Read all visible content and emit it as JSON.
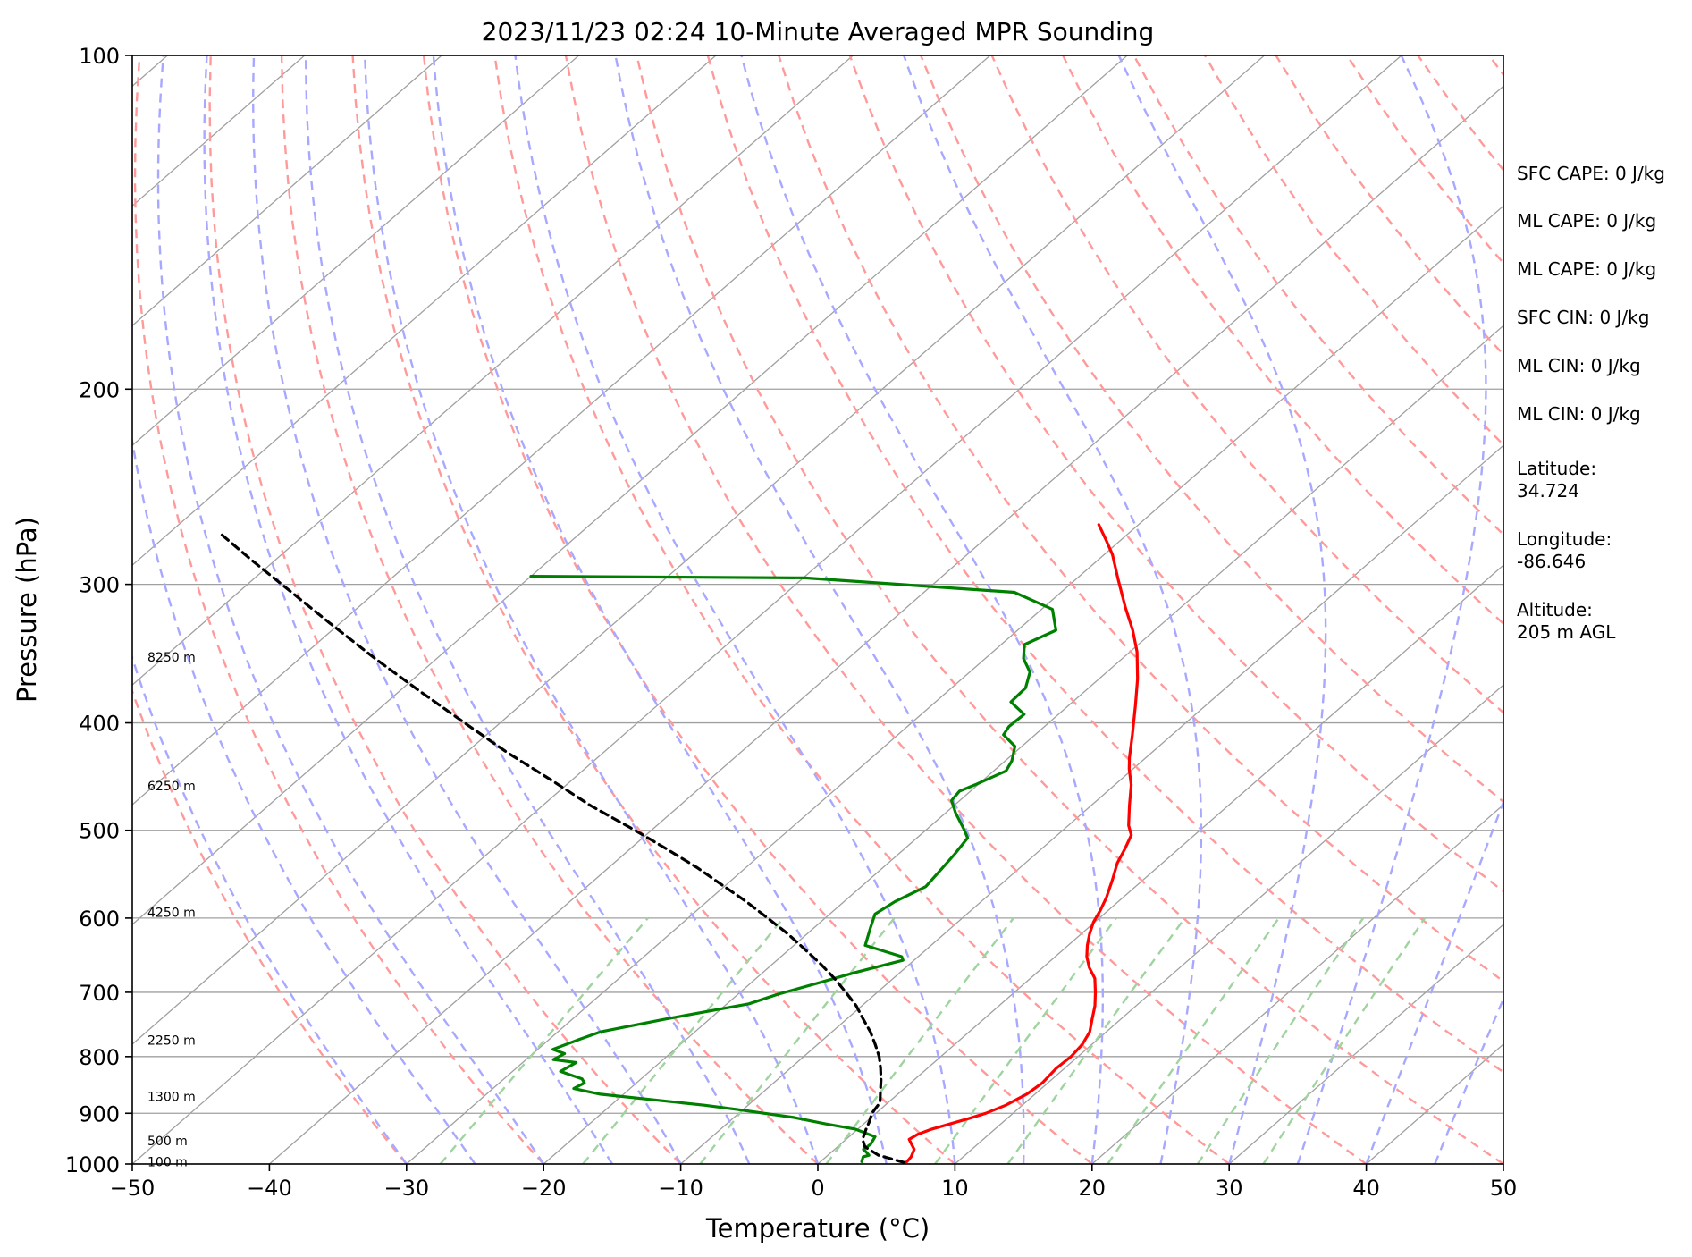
{
  "chart_data": {
    "type": "line",
    "title": "2023/11/23 02:24 10-Minute Averaged MPR Sounding",
    "xlabel": "Temperature (°C)",
    "ylabel": "Pressure (hPa)",
    "xlim": [
      -50,
      50
    ],
    "ylim": [
      1000,
      100
    ],
    "y_scale": "log",
    "skew_t": true,
    "x_ticks": [
      "−50",
      "−40",
      "−30",
      "−20",
      "−10",
      "0",
      "10",
      "20",
      "30",
      "40",
      "50"
    ],
    "y_ticks": [
      "100",
      "200",
      "300",
      "400",
      "500",
      "600",
      "700",
      "800",
      "900",
      "1000"
    ],
    "height_labels": [
      {
        "label": "100 m",
        "p": 995
      },
      {
        "label": "500 m",
        "p": 953
      },
      {
        "label": "1300 m",
        "p": 869
      },
      {
        "label": "2250 m",
        "p": 773
      },
      {
        "label": "4250 m",
        "p": 593
      },
      {
        "label": "6250 m",
        "p": 456
      },
      {
        "label": "8250 m",
        "p": 349
      }
    ],
    "series": [
      {
        "id": "temperature",
        "color": "#ff0000",
        "points": [
          [
            6.3,
            995
          ],
          [
            6.2,
            985
          ],
          [
            5.8,
            970
          ],
          [
            5.2,
            960
          ],
          [
            4.6,
            950
          ],
          [
            4.8,
            940
          ],
          [
            5.4,
            930
          ],
          [
            6.3,
            920
          ],
          [
            7.2,
            910
          ],
          [
            8.0,
            900
          ],
          [
            8.8,
            885
          ],
          [
            9.4,
            865
          ],
          [
            9.6,
            845
          ],
          [
            9.4,
            820
          ],
          [
            9.5,
            800
          ],
          [
            9.3,
            780
          ],
          [
            8.8,
            760
          ],
          [
            7.9,
            740
          ],
          [
            7.0,
            720
          ],
          [
            5.9,
            700
          ],
          [
            4.7,
            680
          ],
          [
            3.4,
            665
          ],
          [
            2.3,
            650
          ],
          [
            1.4,
            635
          ],
          [
            0.6,
            620
          ],
          [
            -0.1,
            605
          ],
          [
            -0.6,
            590
          ],
          [
            -1.2,
            575
          ],
          [
            -2.2,
            555
          ],
          [
            -3.3,
            535
          ],
          [
            -3.9,
            520
          ],
          [
            -4.6,
            505
          ],
          [
            -5.6,
            495
          ],
          [
            -7.2,
            475
          ],
          [
            -8.8,
            455
          ],
          [
            -10.3,
            440
          ],
          [
            -11.2,
            430
          ],
          [
            -12.9,
            410
          ],
          [
            -15.2,
            385
          ],
          [
            -17.2,
            365
          ],
          [
            -19.5,
            345
          ],
          [
            -21.6,
            330
          ],
          [
            -24.0,
            315
          ],
          [
            -26.9,
            297
          ],
          [
            -29.4,
            282
          ],
          [
            -31.0,
            274
          ],
          [
            -32.9,
            265
          ]
        ]
      },
      {
        "id": "dewpoint",
        "color": "#008000",
        "points": [
          [
            3.0,
            995
          ],
          [
            2.7,
            985
          ],
          [
            3.0,
            982
          ],
          [
            2.5,
            975
          ],
          [
            2.1,
            970
          ],
          [
            2.2,
            960
          ],
          [
            2.0,
            950
          ],
          [
            1.9,
            945
          ],
          [
            -0.2,
            930
          ],
          [
            -2.8,
            920
          ],
          [
            -5.6,
            908
          ],
          [
            -10.4,
            893
          ],
          [
            -13.2,
            885
          ],
          [
            -21.7,
            865
          ],
          [
            -24.1,
            855
          ],
          [
            -23.8,
            845
          ],
          [
            -24.3,
            838
          ],
          [
            -26.5,
            825
          ],
          [
            -26.1,
            810
          ],
          [
            -28.0,
            805
          ],
          [
            -27.7,
            795
          ],
          [
            -28.9,
            788
          ],
          [
            -27.8,
            772
          ],
          [
            -26.9,
            760
          ],
          [
            -23.2,
            740
          ],
          [
            -18.4,
            717
          ],
          [
            -17.1,
            703
          ],
          [
            -14.9,
            685
          ],
          [
            -13.3,
            672
          ],
          [
            -10.8,
            655
          ],
          [
            -11.2,
            650
          ],
          [
            -14.8,
            635
          ],
          [
            -15.9,
            612
          ],
          [
            -16.7,
            595
          ],
          [
            -16.3,
            580
          ],
          [
            -15.3,
            562
          ],
          [
            -15.6,
            543
          ],
          [
            -15.9,
            525
          ],
          [
            -16.3,
            508
          ],
          [
            -17.4,
            498
          ],
          [
            -19.3,
            482
          ],
          [
            -20.6,
            470
          ],
          [
            -20.8,
            461
          ],
          [
            -20.2,
            455
          ],
          [
            -19.1,
            442
          ],
          [
            -19.5,
            433
          ],
          [
            -20.5,
            420
          ],
          [
            -22.3,
            410
          ],
          [
            -22.6,
            403
          ],
          [
            -22.5,
            393
          ],
          [
            -24.5,
            383
          ],
          [
            -24.6,
            372
          ],
          [
            -25.6,
            360
          ],
          [
            -27.2,
            350
          ],
          [
            -28.3,
            340
          ],
          [
            -27.2,
            330
          ],
          [
            -29.2,
            316
          ],
          [
            -33.4,
            305
          ],
          [
            -49.9,
            296
          ],
          [
            -70.0,
            295
          ]
        ]
      },
      {
        "id": "parcel",
        "color": "#000000",
        "dashed": true,
        "points": [
          [
            6.2,
            997
          ],
          [
            3.7,
            982
          ],
          [
            2.0,
            965
          ],
          [
            1.2,
            950
          ],
          [
            0.6,
            930
          ],
          [
            0.2,
            915
          ],
          [
            -0.3,
            900
          ],
          [
            -0.6,
            880
          ],
          [
            -1.5,
            860
          ],
          [
            -2.4,
            840
          ],
          [
            -3.4,
            820
          ],
          [
            -4.5,
            800
          ],
          [
            -5.8,
            780
          ],
          [
            -7.2,
            760
          ],
          [
            -8.8,
            740
          ],
          [
            -10.4,
            720
          ],
          [
            -12.3,
            700
          ],
          [
            -14.3,
            680
          ],
          [
            -16.5,
            660
          ],
          [
            -18.9,
            640
          ],
          [
            -21.4,
            620
          ],
          [
            -24.2,
            600
          ],
          [
            -27.1,
            580
          ],
          [
            -30.3,
            560
          ],
          [
            -33.6,
            540
          ],
          [
            -37.3,
            520
          ],
          [
            -41.2,
            500
          ],
          [
            -46.5,
            475
          ],
          [
            -51.6,
            450
          ],
          [
            -57.1,
            425
          ],
          [
            -62.6,
            400
          ],
          [
            -68.4,
            375
          ],
          [
            -74.5,
            350
          ],
          [
            -80.8,
            325
          ],
          [
            -87.5,
            300
          ],
          [
            -91.8,
            285
          ],
          [
            -96.2,
            270
          ]
        ]
      }
    ],
    "stats": [
      "SFC CAPE: 0 J/kg",
      "ML CAPE: 0 J/kg",
      "ML CAPE: 0 J/kg",
      "SFC CIN: 0 J/kg",
      "ML CIN: 0 J/kg",
      "ML CIN: 0 J/kg",
      "Latitude:\n34.724",
      "Longitude:\n-86.646",
      "Altitude:\n205 m AGL"
    ],
    "background_colors": {
      "isotherms": "#a0a0a0",
      "isobars": "#a0a0a0",
      "dry_adiabats": "#ff9a9a",
      "moist_adiabats": "#a8a8ff",
      "mixing_ratio": "#9fd49f"
    }
  }
}
